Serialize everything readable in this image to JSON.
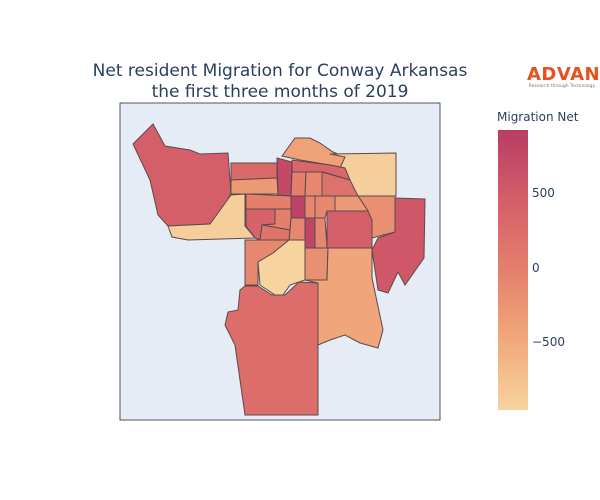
{
  "chart_data": {
    "type": "choropleth",
    "title_line1": "Net resident Migration for Conway Arkansas",
    "title_line2": "the first three months of 2019",
    "colorbar": {
      "title": "Migration Net",
      "range": [
        -950,
        930
      ],
      "ticks": [
        {
          "value": 500,
          "label": "500"
        },
        {
          "value": 0,
          "label": "0"
        },
        {
          "value": -500,
          "label": "−500"
        }
      ],
      "colorscale": [
        "#f7d39f",
        "#f1a87b",
        "#e4806c",
        "#d55e69",
        "#b83c65"
      ]
    },
    "regions_values": [
      450,
      -900,
      300,
      -300,
      750,
      -400,
      -900,
      350,
      0,
      -100,
      200,
      -200,
      550,
      0,
      850,
      -100,
      -100,
      -300,
      400,
      0,
      -100,
      800,
      -100,
      450,
      150,
      -100,
      -950,
      -200,
      250,
      -450
    ],
    "background_color": "#e5ecf6"
  },
  "logo": {
    "text": "ADVAN",
    "tagline": "Research through Technology"
  }
}
